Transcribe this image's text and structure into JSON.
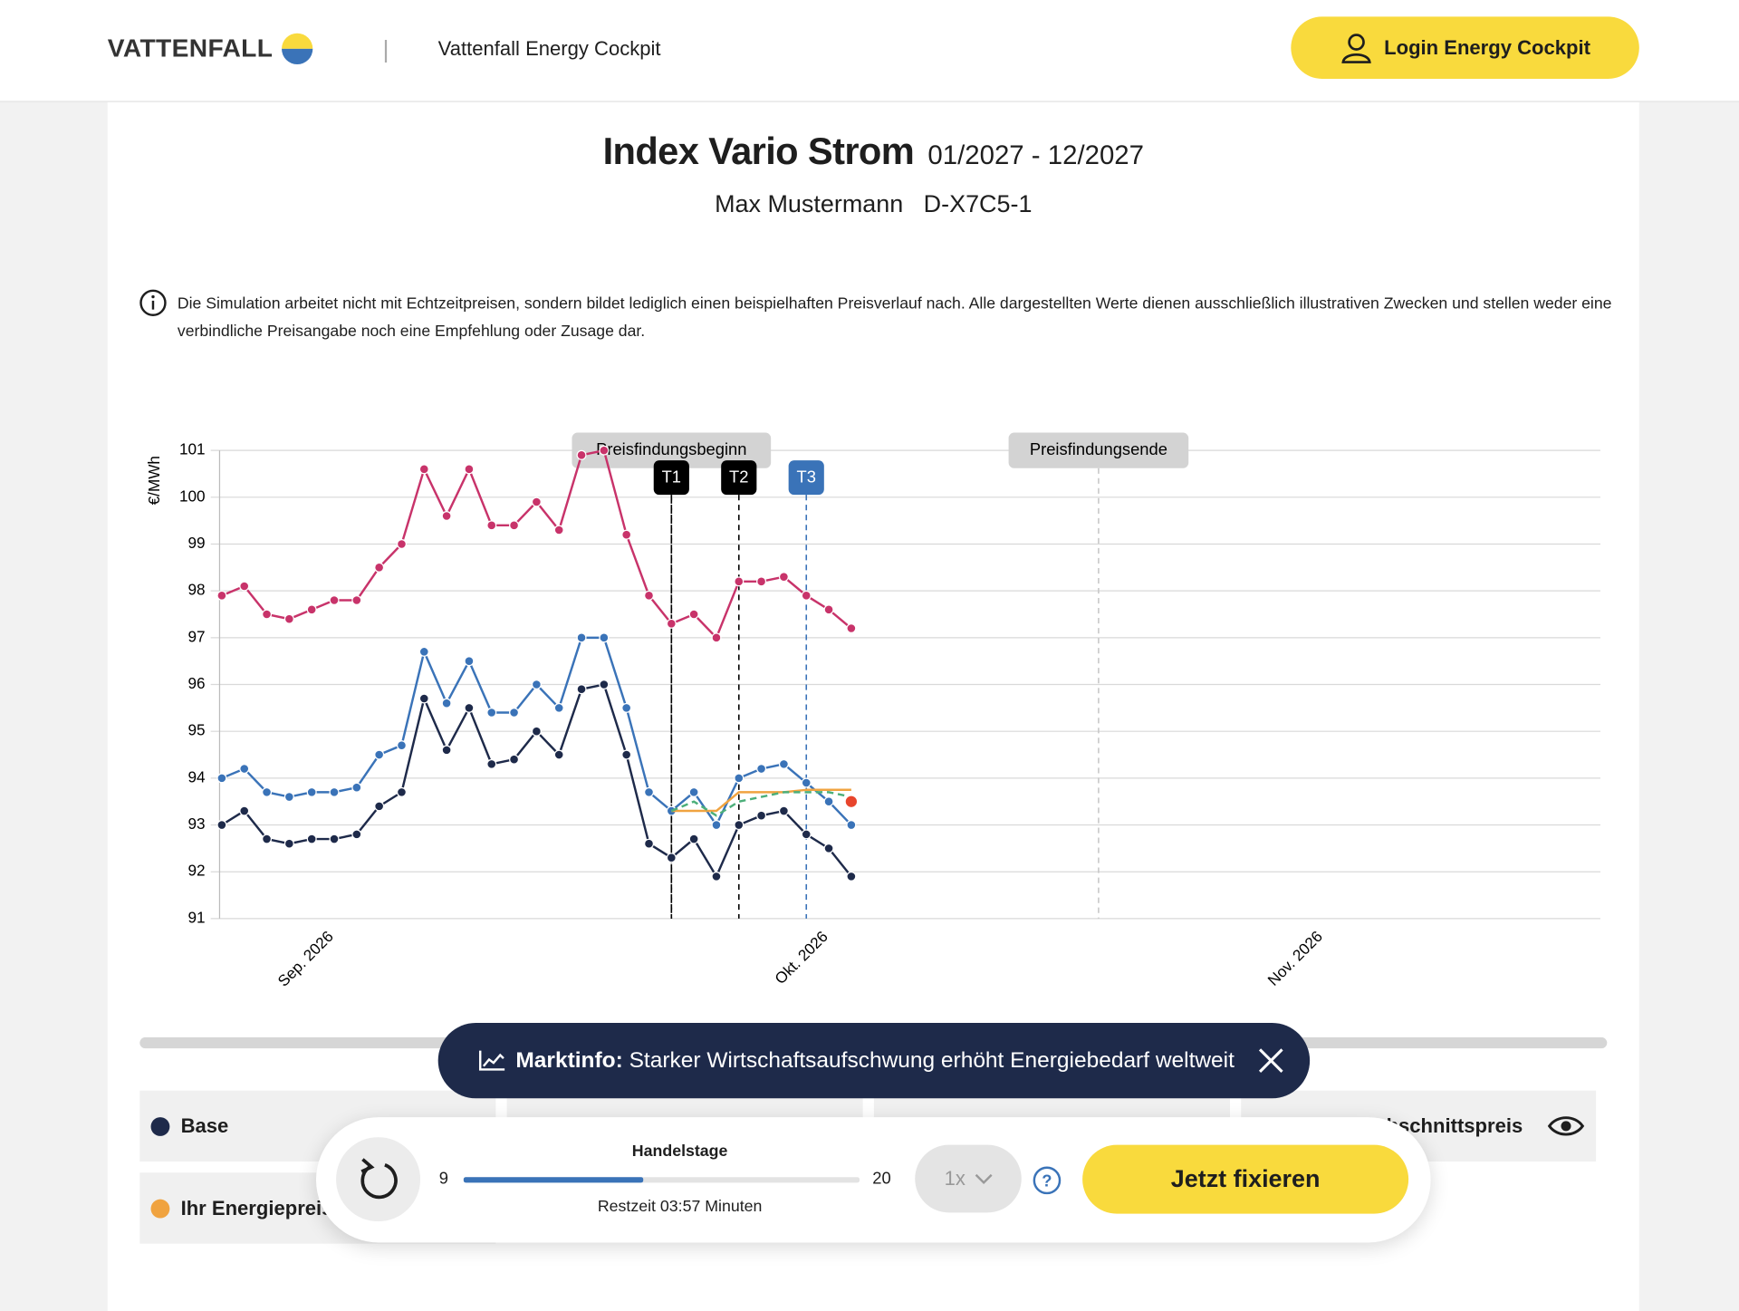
{
  "header": {
    "logo": "VATTENFALL",
    "app_name": "Vattenfall Energy Cockpit",
    "login": "Login Energy Cockpit"
  },
  "product": {
    "title": "Index Vario Strom",
    "period": "01/2027 - 12/2027",
    "customer": "Max Mustermann",
    "contract": "D-X7C5-1"
  },
  "disclaimer": "Die Simulation arbeitet nicht mit Echtzeitpreisen, sondern bildet lediglich einen beispielhaften Preisverlauf nach. Alle dargestellten Werte dienen ausschließlich illustrativen Zwecken und stellen weder eine verbindliche Preisangabe noch eine Empfehlung oder Zusage dar.",
  "chart_data": {
    "type": "line",
    "ylabel": "€/MWh",
    "ylim": [
      91,
      101
    ],
    "yticks": [
      91,
      92,
      93,
      94,
      95,
      96,
      97,
      98,
      99,
      100,
      101
    ],
    "grid": true,
    "categories": [
      null,
      null,
      null,
      null,
      null,
      "Sep. 2026",
      null,
      null,
      null,
      null,
      null,
      null,
      null,
      null,
      null,
      null,
      null,
      null,
      null,
      null,
      null,
      null,
      null,
      null,
      null,
      null,
      null,
      "Okt. 2026",
      null,
      null,
      null,
      null,
      null,
      null,
      null,
      null,
      null,
      null,
      null,
      null,
      null,
      null,
      null,
      null,
      null,
      null,
      null,
      null,
      null,
      "Nov. 2026",
      null,
      null,
      null,
      null,
      null,
      null,
      null,
      null,
      null,
      null,
      null,
      null
    ],
    "series": [
      {
        "color": "#c8336a",
        "markers": true,
        "values": [
          97.9,
          98.1,
          97.5,
          97.4,
          97.6,
          97.8,
          97.8,
          98.5,
          99.0,
          100.6,
          99.6,
          100.6,
          99.4,
          99.4,
          99.9,
          99.3,
          100.9,
          101.0,
          99.2,
          97.9,
          97.3,
          97.5,
          97.0,
          98.2,
          98.2,
          98.3,
          97.9,
          97.6,
          97.2,
          null,
          null,
          null,
          null,
          null,
          null,
          null,
          null,
          null,
          null,
          null,
          null,
          null,
          null,
          null,
          null,
          null,
          null,
          null,
          null,
          null,
          null,
          null,
          null,
          null,
          null,
          null,
          null,
          null,
          null,
          null,
          null,
          null
        ]
      },
      {
        "color": "#3a73b8",
        "markers": true,
        "values": [
          94.0,
          94.2,
          93.7,
          93.6,
          93.7,
          93.7,
          93.8,
          94.5,
          94.7,
          96.7,
          95.6,
          96.5,
          95.4,
          95.4,
          96.0,
          95.5,
          97.0,
          97.0,
          95.5,
          93.7,
          93.3,
          93.7,
          93.0,
          94.0,
          94.2,
          94.3,
          93.9,
          93.5,
          93.0,
          null,
          null,
          null,
          null,
          null,
          null,
          null,
          null,
          null,
          null,
          null,
          null,
          null,
          null,
          null,
          null,
          null,
          null,
          null,
          null,
          null,
          null,
          null,
          null,
          null,
          null,
          null,
          null,
          null,
          null,
          null,
          null,
          null
        ]
      },
      {
        "name": "Base",
        "color": "#1e2a4a",
        "markers": true,
        "values": [
          93.0,
          93.3,
          92.7,
          92.6,
          92.7,
          92.7,
          92.8,
          93.4,
          93.7,
          95.7,
          94.6,
          95.5,
          94.3,
          94.4,
          95.0,
          94.5,
          95.9,
          96.0,
          94.5,
          92.6,
          92.3,
          92.7,
          91.9,
          93.0,
          93.2,
          93.3,
          92.8,
          92.5,
          91.9,
          null,
          null,
          null,
          null,
          null,
          null,
          null,
          null,
          null,
          null,
          null,
          null,
          null,
          null,
          null,
          null,
          null,
          null,
          null,
          null,
          null,
          null,
          null,
          null,
          null,
          null,
          null,
          null,
          null,
          null,
          null,
          null,
          null
        ]
      },
      {
        "name": "Ihr Energiepreis",
        "color": "#f0a340",
        "markers": false,
        "values": [
          null,
          null,
          null,
          null,
          null,
          null,
          null,
          null,
          null,
          null,
          null,
          null,
          null,
          null,
          null,
          null,
          null,
          null,
          null,
          null,
          93.3,
          93.3,
          93.3,
          93.7,
          93.7,
          93.7,
          93.75,
          93.75,
          93.75,
          null,
          null,
          null,
          null,
          null,
          null,
          null,
          null,
          null,
          null,
          null,
          null,
          null,
          null,
          null,
          null,
          null,
          null,
          null,
          null,
          null,
          null,
          null,
          null,
          null,
          null,
          null,
          null,
          null,
          null,
          null,
          null,
          null
        ]
      },
      {
        "name": "Durchschnittspreis",
        "color": "#4caf7a",
        "markers": false,
        "dashed": true,
        "values": [
          null,
          null,
          null,
          null,
          null,
          null,
          null,
          null,
          null,
          null,
          null,
          null,
          null,
          null,
          null,
          null,
          null,
          null,
          null,
          null,
          93.3,
          93.5,
          93.2,
          93.5,
          93.6,
          93.7,
          93.7,
          93.7,
          93.6,
          null,
          null,
          null,
          null,
          null,
          null,
          null,
          null,
          null,
          null,
          null,
          null,
          null,
          null,
          null,
          null,
          null,
          null,
          null,
          null,
          null,
          null,
          null,
          null,
          null,
          null,
          null,
          null,
          null,
          null,
          null,
          null,
          null
        ]
      },
      {
        "color": "#e8452c",
        "markers": true,
        "values": [
          null,
          null,
          null,
          null,
          null,
          null,
          null,
          null,
          null,
          null,
          null,
          null,
          null,
          null,
          null,
          null,
          null,
          null,
          null,
          null,
          null,
          null,
          null,
          null,
          null,
          null,
          null,
          null,
          93.5,
          null,
          null,
          null,
          null,
          null,
          null,
          null,
          null,
          null,
          null,
          null,
          null,
          null,
          null,
          null,
          null,
          null,
          null,
          null,
          null,
          null,
          null,
          null,
          null,
          null,
          null,
          null,
          null,
          null,
          null,
          null,
          null,
          null
        ]
      }
    ],
    "phases": [
      {
        "text": "Preisfindungsbeginn",
        "x": 20
      },
      {
        "text": "Preisfindungsende",
        "x": 39
      }
    ],
    "markers": [
      {
        "text": "T1",
        "x": 20,
        "color": "#000000"
      },
      {
        "text": "T2",
        "x": 23,
        "color": "#000000"
      },
      {
        "text": "T3",
        "x": 26,
        "color": "#3a73b8"
      }
    ]
  },
  "toast": {
    "label": "Marktinfo:",
    "text": "Starker Wirtschaftsaufschwung erhöht Energiebedarf weltweit"
  },
  "controls": {
    "slider_title": "Handelstage",
    "min": 9,
    "max": 20,
    "value": 14,
    "remaining": "Restzeit 03:57 Minuten",
    "speed": "1x",
    "submit": "Jetzt fixieren"
  }
}
